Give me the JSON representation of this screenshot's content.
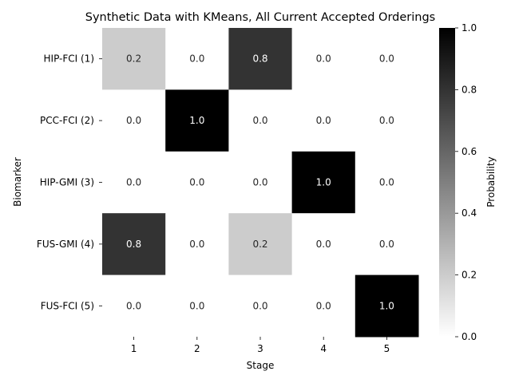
{
  "chart_data": {
    "type": "heatmap",
    "title": "Synthetic Data with KMeans, All Current Accepted Orderings",
    "xlabel": "Stage",
    "ylabel": "Biomarker",
    "x_categories": [
      "1",
      "2",
      "3",
      "4",
      "5"
    ],
    "y_categories": [
      "HIP-FCI (1)",
      "PCC-FCI (2)",
      "HIP-GMI (3)",
      "FUS-GMI (4)",
      "FUS-FCI (5)"
    ],
    "values": [
      [
        0.2,
        0.0,
        0.8,
        0.0,
        0.0
      ],
      [
        0.0,
        1.0,
        0.0,
        0.0,
        0.0
      ],
      [
        0.0,
        0.0,
        0.0,
        1.0,
        0.0
      ],
      [
        0.8,
        0.0,
        0.2,
        0.0,
        0.0
      ],
      [
        0.0,
        0.0,
        0.0,
        0.0,
        1.0
      ]
    ],
    "colorbar": {
      "label": "Probability",
      "range": [
        0.0,
        1.0
      ],
      "ticks": [
        "0.0",
        "0.2",
        "0.4",
        "0.6",
        "0.8",
        "1.0"
      ],
      "colormap": "white-to-black"
    }
  }
}
